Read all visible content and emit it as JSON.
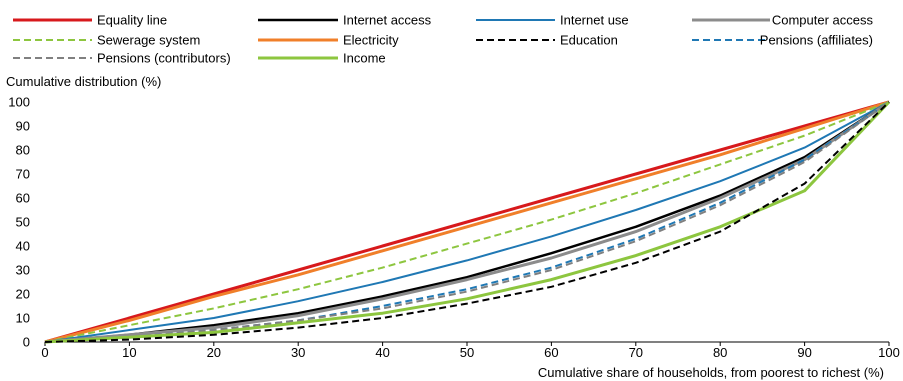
{
  "chart_data": {
    "type": "line",
    "title": "",
    "ylabel": "Cumulative distribution (%)",
    "xlabel": "Cumulative share of households, from poorest to richest (%)",
    "x": [
      0,
      10,
      20,
      30,
      40,
      50,
      60,
      70,
      80,
      90,
      100
    ],
    "xlim": [
      0,
      100
    ],
    "ylim": [
      0,
      100
    ],
    "xticks": [
      0,
      10,
      20,
      30,
      40,
      50,
      60,
      70,
      80,
      90,
      100
    ],
    "yticks": [
      0,
      10,
      20,
      30,
      40,
      50,
      60,
      70,
      80,
      90,
      100
    ],
    "grid": false,
    "legend_position": "top",
    "series": [
      {
        "name": "Equality line",
        "color": "#d7191c",
        "dash": "solid",
        "width": 3,
        "values": [
          0,
          10,
          20,
          30,
          40,
          50,
          60,
          70,
          80,
          90,
          100
        ]
      },
      {
        "name": "Electricity",
        "color": "#f07f2a",
        "dash": "solid",
        "width": 3,
        "values": [
          0,
          9,
          19,
          28,
          38,
          48,
          58,
          68,
          78,
          89,
          100
        ]
      },
      {
        "name": "Sewerage system",
        "color": "#8dc63f",
        "dash": "dashed",
        "width": 2,
        "values": [
          0,
          7,
          14,
          22,
          31,
          41,
          51,
          62,
          74,
          86,
          100
        ]
      },
      {
        "name": "Internet use",
        "color": "#1f78b4",
        "dash": "solid",
        "width": 2,
        "values": [
          0,
          5,
          10,
          17,
          25,
          34,
          44,
          55,
          67,
          81,
          100
        ]
      },
      {
        "name": "Internet access",
        "color": "#000000",
        "dash": "solid",
        "width": 2.5,
        "values": [
          0,
          3,
          7,
          12,
          19,
          27,
          37,
          48,
          61,
          77,
          100
        ]
      },
      {
        "name": "Computer access",
        "color": "#8c8c8c",
        "dash": "solid",
        "width": 3,
        "values": [
          0,
          3,
          6,
          11,
          18,
          26,
          35,
          46,
          60,
          76,
          100
        ]
      },
      {
        "name": "Pensions (affiliates)",
        "color": "#1f78b4",
        "dash": "dashed",
        "width": 2,
        "values": [
          0,
          2,
          5,
          9,
          15,
          22,
          31,
          43,
          58,
          76,
          100
        ]
      },
      {
        "name": "Pensions (contributors)",
        "color": "#808080",
        "dash": "dashed",
        "width": 2,
        "values": [
          0,
          2,
          5,
          9,
          14,
          21,
          30,
          42,
          57,
          75,
          100
        ]
      },
      {
        "name": "Income",
        "color": "#8dc63f",
        "dash": "solid",
        "width": 3,
        "values": [
          0,
          2,
          4,
          8,
          12,
          18,
          26,
          36,
          48,
          63,
          100
        ]
      },
      {
        "name": "Education",
        "color": "#000000",
        "dash": "dashed",
        "width": 2,
        "values": [
          0,
          1,
          3,
          6,
          10,
          16,
          23,
          33,
          46,
          66,
          100
        ]
      }
    ],
    "legend_order": [
      "Equality line",
      "Internet access",
      "Internet use",
      "Computer access",
      "Sewerage system",
      "Electricity",
      "Education",
      "Pensions (affiliates)",
      "Pensions (contributors)",
      "Income"
    ]
  }
}
